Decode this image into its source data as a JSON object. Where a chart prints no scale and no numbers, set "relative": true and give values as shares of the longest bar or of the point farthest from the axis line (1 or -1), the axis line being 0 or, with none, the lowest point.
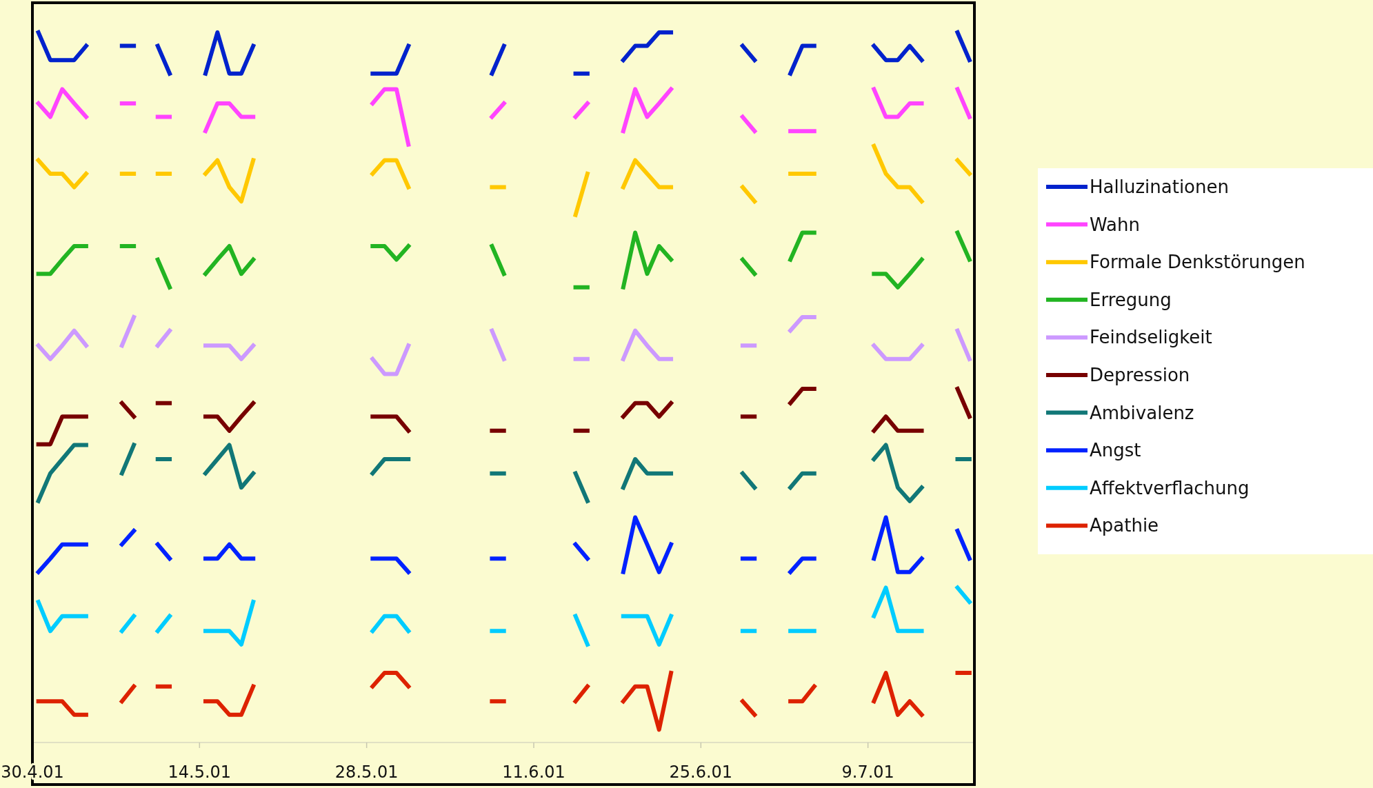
{
  "chart_data": {
    "type": "line",
    "relative": true,
    "line_style": "solid",
    "marker": "none",
    "grid": false,
    "legend": "right",
    "x": [
      "2001-04-30T12:00",
      "2001-05-01T12:00",
      "2001-05-02T12:00",
      "2001-05-03T12:00",
      "2001-05-04T12:00",
      "2001-05-05T12:00",
      "2001-05-07T12:00",
      "2001-05-08T12:00",
      "2001-05-09T12:00",
      "2001-05-10T12:00",
      "2001-05-11T12:00",
      "2001-05-12T12:00",
      "2001-05-14T12:00",
      "2001-05-15T12:00",
      "2001-05-16T12:00",
      "2001-05-17T12:00",
      "2001-05-18T12:00",
      "2001-05-19T12:00",
      "2001-05-28T12:00",
      "2001-05-29T12:00",
      "2001-05-30T12:00",
      "2001-05-31T12:00",
      "2001-06-01T12:00",
      "2001-06-07T12:00",
      "2001-06-08T12:00",
      "2001-06-09T12:00",
      "2001-06-14T12:00",
      "2001-06-15T12:00",
      "2001-06-16T12:00",
      "2001-06-18T12:00",
      "2001-06-19T12:00",
      "2001-06-20T12:00",
      "2001-06-21T12:00",
      "2001-06-22T12:00",
      "2001-06-23T12:00",
      "2001-06-28T12:00",
      "2001-06-29T12:00",
      "2001-06-30T12:00",
      "2001-07-02T12:00",
      "2001-07-03T12:00",
      "2001-07-04T12:00",
      "2001-07-05T12:00",
      "2001-07-09T12:00",
      "2001-07-10T12:00",
      "2001-07-11T12:00",
      "2001-07-12T12:00",
      "2001-07-13T12:00",
      "2001-07-14T12:00",
      "2001-07-16T12:00",
      "2001-07-17T12:00"
    ],
    "xlim": [
      "2001-04-30T00:00",
      "2001-07-17T22:00"
    ],
    "xticks": [
      {
        "value": "2001-04-30",
        "label": "30.4.01"
      },
      {
        "value": "2001-05-14",
        "label": "14.5.01"
      },
      {
        "value": "2001-05-28",
        "label": "28.5.01"
      },
      {
        "value": "2001-06-11",
        "label": "11.6.01"
      },
      {
        "value": "2001-06-25",
        "label": "25.6.01"
      },
      {
        "value": "2001-07-09",
        "label": "9.7.01"
      }
    ],
    "series": [
      {
        "name": "Halluzinationen",
        "color": "#0022cc",
        "values": [
          1.0,
          0.961,
          0.961,
          0.961,
          0.981,
          null,
          0.981,
          0.981,
          null,
          0.981,
          0.942,
          null,
          0.942,
          1.0,
          0.942,
          0.942,
          0.981,
          null,
          0.942,
          0.942,
          0.942,
          0.981,
          null,
          0.942,
          0.981,
          null,
          0.942,
          0.942,
          null,
          0.961,
          0.981,
          0.981,
          1.0,
          1.0,
          null,
          0.981,
          0.961,
          null,
          0.942,
          0.981,
          0.981,
          null,
          0.981,
          0.961,
          0.961,
          0.981,
          0.961,
          null,
          1.0,
          0.961
        ]
      },
      {
        "name": "Wahn",
        "color": "#ff44ff",
        "values": [
          0.9,
          0.881,
          0.92,
          0.9,
          0.881,
          null,
          0.9,
          0.9,
          null,
          0.881,
          0.881,
          null,
          0.861,
          0.9,
          0.9,
          0.881,
          0.881,
          null,
          0.9,
          0.92,
          0.92,
          0.842,
          null,
          0.881,
          0.9,
          null,
          0.881,
          0.9,
          null,
          0.861,
          0.92,
          0.881,
          0.9,
          0.92,
          null,
          0.881,
          0.861,
          null,
          0.861,
          0.861,
          0.861,
          null,
          0.92,
          0.881,
          0.881,
          0.9,
          0.9,
          null,
          0.92,
          0.881
        ]
      },
      {
        "name": "Formale  Denkstörungen",
        "color": "#ffc800",
        "values": [
          0.82,
          0.801,
          0.801,
          0.782,
          0.801,
          null,
          0.801,
          0.801,
          null,
          0.801,
          0.801,
          null,
          0.801,
          0.82,
          0.782,
          0.762,
          0.82,
          null,
          0.801,
          0.82,
          0.82,
          0.782,
          null,
          0.782,
          0.782,
          null,
          0.743,
          0.801,
          null,
          0.782,
          0.82,
          0.801,
          0.782,
          0.782,
          null,
          0.782,
          0.762,
          null,
          0.801,
          0.801,
          0.801,
          null,
          0.84,
          0.801,
          0.782,
          0.782,
          0.762,
          null,
          0.82,
          0.801
        ]
      },
      {
        "name": "Erregung",
        "color": "#22b422",
        "values": [
          0.66,
          0.66,
          0.68,
          0.699,
          0.699,
          null,
          0.699,
          0.699,
          null,
          0.68,
          0.641,
          null,
          0.66,
          0.68,
          0.699,
          0.66,
          0.68,
          null,
          0.699,
          0.699,
          0.68,
          0.699,
          null,
          0.699,
          0.66,
          null,
          0.641,
          0.641,
          null,
          0.641,
          0.718,
          0.66,
          0.699,
          0.68,
          null,
          0.68,
          0.66,
          null,
          0.68,
          0.718,
          0.718,
          null,
          0.66,
          0.66,
          0.641,
          0.66,
          0.68,
          null,
          0.718,
          0.68
        ]
      },
      {
        "name": "Feindseligkeit",
        "color": "#cc99ff",
        "values": [
          0.559,
          0.54,
          0.559,
          0.58,
          0.559,
          null,
          0.559,
          0.599,
          null,
          0.559,
          0.58,
          null,
          0.559,
          0.559,
          0.559,
          0.54,
          0.559,
          null,
          0.54,
          0.519,
          0.519,
          0.559,
          null,
          0.58,
          0.54,
          null,
          0.54,
          0.54,
          null,
          0.54,
          0.58,
          0.559,
          0.54,
          0.54,
          null,
          0.559,
          0.559,
          null,
          0.58,
          0.599,
          0.599,
          null,
          0.559,
          0.54,
          0.54,
          0.54,
          0.559,
          null,
          0.58,
          0.54
        ]
      },
      {
        "name": "Depression",
        "color": "#770000",
        "values": [
          0.42,
          0.42,
          0.459,
          0.459,
          0.459,
          null,
          0.478,
          0.459,
          null,
          0.478,
          0.478,
          null,
          0.459,
          0.459,
          0.439,
          0.459,
          0.478,
          null,
          0.459,
          0.459,
          0.459,
          0.439,
          null,
          0.439,
          0.439,
          null,
          0.439,
          0.439,
          null,
          0.459,
          0.478,
          0.478,
          0.459,
          0.478,
          null,
          0.459,
          0.459,
          null,
          0.478,
          0.498,
          0.498,
          null,
          0.439,
          0.459,
          0.439,
          0.439,
          0.439,
          null,
          0.498,
          0.459
        ]
      },
      {
        "name": "Ambivalenz",
        "color": "#117777",
        "values": [
          0.34,
          0.379,
          0.399,
          0.419,
          0.419,
          null,
          0.379,
          0.419,
          null,
          0.399,
          0.399,
          null,
          0.379,
          0.399,
          0.419,
          0.359,
          0.379,
          null,
          0.379,
          0.399,
          0.399,
          0.399,
          null,
          0.379,
          0.379,
          null,
          0.379,
          0.34,
          null,
          0.359,
          0.399,
          0.379,
          0.379,
          0.379,
          null,
          0.379,
          0.359,
          null,
          0.359,
          0.379,
          0.379,
          null,
          0.399,
          0.419,
          0.359,
          0.34,
          0.359,
          null,
          0.399,
          0.399
        ]
      },
      {
        "name": "Angst",
        "color": "#0022ff",
        "values": [
          0.24,
          0.259,
          0.279,
          0.279,
          0.279,
          null,
          0.279,
          0.298,
          null,
          0.279,
          0.259,
          null,
          0.259,
          0.259,
          0.279,
          0.259,
          0.259,
          null,
          0.259,
          0.259,
          0.259,
          0.24,
          null,
          0.259,
          0.259,
          null,
          0.279,
          0.259,
          null,
          0.24,
          0.317,
          0.279,
          0.24,
          0.279,
          null,
          0.259,
          0.259,
          null,
          0.24,
          0.259,
          0.259,
          null,
          0.259,
          0.317,
          0.24,
          0.24,
          0.259,
          null,
          0.298,
          0.259
        ]
      },
      {
        "name": "Affektverflachung",
        "color": "#00ccff",
        "values": [
          0.198,
          0.157,
          0.178,
          0.178,
          0.178,
          null,
          0.157,
          0.178,
          null,
          0.157,
          0.178,
          null,
          0.157,
          0.157,
          0.157,
          0.138,
          0.198,
          null,
          0.157,
          0.178,
          0.178,
          0.157,
          null,
          0.157,
          0.157,
          null,
          0.178,
          0.138,
          null,
          0.178,
          0.178,
          0.178,
          0.138,
          0.178,
          null,
          0.157,
          0.157,
          null,
          0.157,
          0.157,
          0.157,
          null,
          0.178,
          0.218,
          0.157,
          0.157,
          0.157,
          null,
          0.218,
          0.198
        ]
      },
      {
        "name": "Apathie",
        "color": "#dd2200",
        "values": [
          0.058,
          0.058,
          0.058,
          0.039,
          0.039,
          null,
          0.058,
          0.079,
          null,
          0.079,
          0.079,
          null,
          0.058,
          0.058,
          0.039,
          0.039,
          0.079,
          null,
          0.079,
          0.098,
          0.098,
          0.079,
          null,
          0.058,
          0.058,
          null,
          0.058,
          0.079,
          null,
          0.058,
          0.079,
          0.079,
          0.018,
          0.098,
          null,
          0.058,
          0.039,
          null,
          0.058,
          0.058,
          0.079,
          null,
          0.058,
          0.098,
          0.039,
          0.058,
          0.039,
          null,
          0.098,
          0.098
        ]
      }
    ]
  }
}
